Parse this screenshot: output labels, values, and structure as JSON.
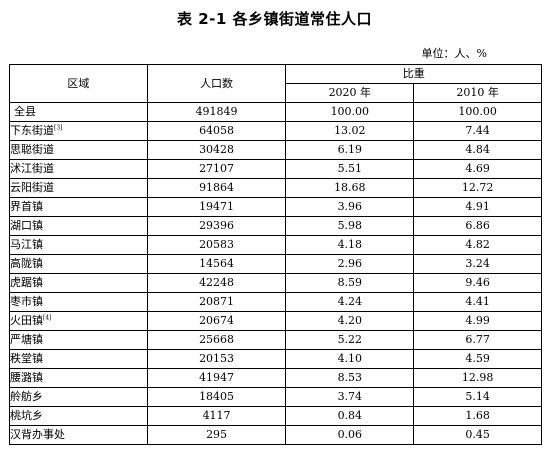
{
  "title": "表 2-1 各乡镇街道常住人口",
  "unit": "单位：人、%",
  "headers": {
    "region": "区域",
    "population": "人口数",
    "share": "比重",
    "year2020": "2020 年",
    "year2010": "2010 年"
  },
  "rows": [
    {
      "name": "全县",
      "note": "",
      "pop": "491849",
      "p2020": "100.00",
      "p2010": "100.00"
    },
    {
      "name": "下东街道",
      "note": "[3]",
      "pop": "64058",
      "p2020": "13.02",
      "p2010": "7.44"
    },
    {
      "name": "思聪街道",
      "note": "",
      "pop": "30428",
      "p2020": "6.19",
      "p2010": "4.84"
    },
    {
      "name": "沭江街道",
      "note": "",
      "pop": "27107",
      "p2020": "5.51",
      "p2010": "4.69"
    },
    {
      "name": "云阳街道",
      "note": "",
      "pop": "91864",
      "p2020": "18.68",
      "p2010": "12.72"
    },
    {
      "name": "界首镇",
      "note": "",
      "pop": "19471",
      "p2020": "3.96",
      "p2010": "4.91"
    },
    {
      "name": "湖口镇",
      "note": "",
      "pop": "29396",
      "p2020": "5.98",
      "p2010": "6.86"
    },
    {
      "name": "马江镇",
      "note": "",
      "pop": "20583",
      "p2020": "4.18",
      "p2010": "4.82"
    },
    {
      "name": "高陇镇",
      "note": "",
      "pop": "14564",
      "p2020": "2.96",
      "p2010": "3.24"
    },
    {
      "name": "虎踞镇",
      "note": "",
      "pop": "42248",
      "p2020": "8.59",
      "p2010": "9.46"
    },
    {
      "name": "枣市镇",
      "note": "",
      "pop": "20871",
      "p2020": "4.24",
      "p2010": "4.41"
    },
    {
      "name": "火田镇",
      "note": "[4]",
      "pop": "20674",
      "p2020": "4.20",
      "p2010": "4.99"
    },
    {
      "name": "严塘镇",
      "note": "",
      "pop": "25668",
      "p2020": "5.22",
      "p2010": "6.77"
    },
    {
      "name": "秩堂镇",
      "note": "",
      "pop": "20153",
      "p2020": "4.10",
      "p2010": "4.59"
    },
    {
      "name": "腰潞镇",
      "note": "",
      "pop": "41947",
      "p2020": "8.53",
      "p2010": "12.98"
    },
    {
      "name": "舲舫乡",
      "note": "",
      "pop": "18405",
      "p2020": "3.74",
      "p2010": "5.14"
    },
    {
      "name": "桃坑乡",
      "note": "",
      "pop": "4117",
      "p2020": "0.84",
      "p2010": "1.68"
    },
    {
      "name": "汉背办事处",
      "note": "",
      "pop": "295",
      "p2020": "0.06",
      "p2010": "0.45"
    }
  ]
}
